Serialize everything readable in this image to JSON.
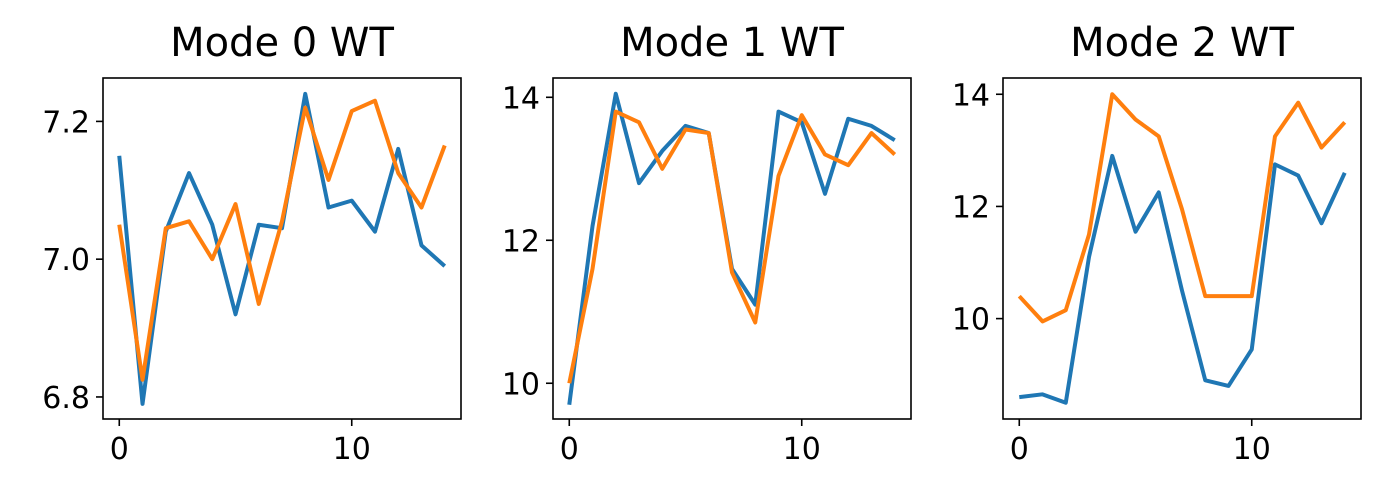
{
  "chart_data": [
    {
      "type": "line",
      "title": "Mode 0 WT",
      "xlabel": "",
      "ylabel": "",
      "xlim": [
        -0.7,
        14.7
      ],
      "ylim": [
        6.768,
        7.263
      ],
      "xticks": [
        0,
        10
      ],
      "xtick_labels": [
        "0",
        "10"
      ],
      "yticks": [
        6.8,
        7.0,
        7.2
      ],
      "ytick_labels": [
        "6.8",
        "7.0",
        "7.2"
      ],
      "x": [
        0,
        1,
        2,
        3,
        4,
        5,
        6,
        7,
        8,
        9,
        10,
        11,
        12,
        13,
        14
      ],
      "series": [
        {
          "color": "#1f77b4",
          "values": [
            7.15,
            6.79,
            7.04,
            7.125,
            7.05,
            6.92,
            7.05,
            7.045,
            7.24,
            7.075,
            7.085,
            7.04,
            7.16,
            7.02,
            6.99
          ]
        },
        {
          "color": "#ff7f0e",
          "values": [
            7.05,
            6.825,
            7.045,
            7.055,
            7.0,
            7.08,
            6.935,
            7.055,
            7.22,
            7.115,
            7.215,
            7.23,
            7.125,
            7.075,
            7.165
          ]
        }
      ],
      "grid": false
    },
    {
      "type": "line",
      "title": "Mode 1 WT",
      "xlabel": "",
      "ylabel": "",
      "xlim": [
        -0.7,
        14.7
      ],
      "ylim": [
        9.5,
        14.27
      ],
      "xticks": [
        0,
        10
      ],
      "xtick_labels": [
        "0",
        "10"
      ],
      "yticks": [
        10,
        12,
        14
      ],
      "ytick_labels": [
        "10",
        "12",
        "14"
      ],
      "x": [
        0,
        1,
        2,
        3,
        4,
        5,
        6,
        7,
        8,
        9,
        10,
        11,
        12,
        13,
        14
      ],
      "series": [
        {
          "color": "#1f77b4",
          "values": [
            9.7,
            12.2,
            14.05,
            12.8,
            13.25,
            13.6,
            13.5,
            11.6,
            11.1,
            13.8,
            13.65,
            12.65,
            13.7,
            13.6,
            13.4
          ]
        },
        {
          "color": "#ff7f0e",
          "values": [
            10.0,
            11.6,
            13.8,
            13.65,
            13.0,
            13.55,
            13.5,
            11.55,
            10.85,
            12.9,
            13.75,
            13.2,
            13.05,
            13.5,
            13.2
          ]
        }
      ],
      "grid": false
    },
    {
      "type": "line",
      "title": "Mode 2 WT",
      "xlabel": "",
      "ylabel": "",
      "xlim": [
        -0.7,
        14.7
      ],
      "ylim": [
        8.21,
        14.29
      ],
      "xticks": [
        0,
        10
      ],
      "xtick_labels": [
        "0",
        "10"
      ],
      "yticks": [
        10,
        12,
        14
      ],
      "ytick_labels": [
        "10",
        "12",
        "14"
      ],
      "x": [
        0,
        1,
        2,
        3,
        4,
        5,
        6,
        7,
        8,
        9,
        10,
        11,
        12,
        13,
        14
      ],
      "series": [
        {
          "color": "#1f77b4",
          "values": [
            8.6,
            8.65,
            8.5,
            11.1,
            12.9,
            11.55,
            12.25,
            10.5,
            8.9,
            8.8,
            9.45,
            12.75,
            12.55,
            11.7,
            12.6
          ]
        },
        {
          "color": "#ff7f0e",
          "values": [
            10.4,
            9.95,
            10.15,
            11.5,
            14.0,
            13.55,
            13.25,
            11.95,
            10.4,
            10.4,
            10.4,
            13.25,
            13.85,
            13.05,
            13.5
          ]
        }
      ],
      "grid": false
    }
  ]
}
